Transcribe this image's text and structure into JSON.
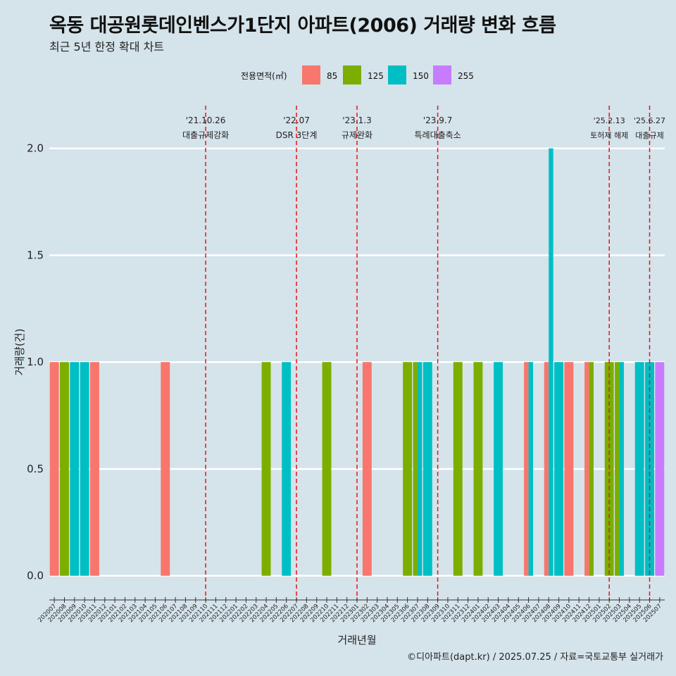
{
  "title": "옥동 대공원롯데인벤스가1단지 아파트(2006) 거래량 변화 흐름",
  "subtitle": "최근 5년 한정 확대 차트",
  "caption": "©디아파트(dapt.kr) / 2025.07.25 / 자료=국토교통부 실거래가",
  "chart_data": {
    "type": "bar",
    "xlabel": "거래년월",
    "ylabel": "거래량(건)",
    "ylim": [
      -0.09,
      2.2
    ],
    "yticks": [
      "0.0",
      "0.5",
      "1.0",
      "1.5",
      "2.0"
    ],
    "grid": true,
    "legend": {
      "title": "전용면적(㎡)",
      "position": "top",
      "items": [
        {
          "label": "85",
          "color": "#F8766D"
        },
        {
          "label": "125",
          "color": "#7CAE00"
        },
        {
          "label": "150",
          "color": "#00BFC4"
        },
        {
          "label": "255",
          "color": "#C77CFF"
        }
      ]
    },
    "categories": [
      "202007",
      "202008",
      "202009",
      "202010",
      "202011",
      "202012",
      "202101",
      "202102",
      "202103",
      "202104",
      "202105",
      "202106",
      "202107",
      "202108",
      "202109",
      "202110",
      "202111",
      "202112",
      "202201",
      "202202",
      "202203",
      "202204",
      "202205",
      "202206",
      "202207",
      "202208",
      "202209",
      "202210",
      "202211",
      "202212",
      "202301",
      "202302",
      "202303",
      "202304",
      "202305",
      "202306",
      "202307",
      "202308",
      "202309",
      "202310",
      "202311",
      "202312",
      "202401",
      "202402",
      "202403",
      "202404",
      "202405",
      "202406",
      "202407",
      "202408",
      "202409",
      "202410",
      "202411",
      "202412",
      "202501",
      "202502",
      "202503",
      "202504",
      "202505",
      "202506",
      "202507"
    ],
    "bars": [
      {
        "month": "202007",
        "area": "85",
        "count": 1
      },
      {
        "month": "202008",
        "area": "125",
        "count": 1
      },
      {
        "month": "202009",
        "area": "150",
        "count": 1
      },
      {
        "month": "202010",
        "area": "150",
        "count": 1
      },
      {
        "month": "202011",
        "area": "85",
        "count": 1
      },
      {
        "month": "202106",
        "area": "85",
        "count": 1
      },
      {
        "month": "202204",
        "area": "125",
        "count": 1
      },
      {
        "month": "202206",
        "area": "150",
        "count": 1
      },
      {
        "month": "202210",
        "area": "125",
        "count": 1
      },
      {
        "month": "202302",
        "area": "85",
        "count": 1
      },
      {
        "month": "202306",
        "area": "125",
        "count": 1
      },
      {
        "month": "202307",
        "area": "125",
        "count": 1
      },
      {
        "month": "202307",
        "area": "150",
        "count": 1
      },
      {
        "month": "202308",
        "area": "150",
        "count": 1
      },
      {
        "month": "202311",
        "area": "125",
        "count": 1
      },
      {
        "month": "202401",
        "area": "125",
        "count": 1
      },
      {
        "month": "202403",
        "area": "150",
        "count": 1
      },
      {
        "month": "202406",
        "area": "85",
        "count": 1
      },
      {
        "month": "202406",
        "area": "150",
        "count": 1
      },
      {
        "month": "202408",
        "area": "85",
        "count": 1
      },
      {
        "month": "202408",
        "area": "150",
        "count": 2
      },
      {
        "month": "202409",
        "area": "150",
        "count": 1
      },
      {
        "month": "202410",
        "area": "85",
        "count": 1
      },
      {
        "month": "202412",
        "area": "85",
        "count": 1
      },
      {
        "month": "202412",
        "area": "125",
        "count": 1
      },
      {
        "month": "202502",
        "area": "125",
        "count": 1
      },
      {
        "month": "202503",
        "area": "125",
        "count": 1
      },
      {
        "month": "202503",
        "area": "150",
        "count": 1
      },
      {
        "month": "202505",
        "area": "150",
        "count": 1
      },
      {
        "month": "202506",
        "area": "150",
        "count": 1
      },
      {
        "month": "202507",
        "area": "255",
        "count": 1
      }
    ],
    "annotations": [
      {
        "month": "202110",
        "line1": "'21.10.26",
        "line2": "대출규제강화"
      },
      {
        "month": "202207",
        "line1": "'22.07",
        "line2": "DSR 3단계"
      },
      {
        "month": "202301",
        "line1": "'23.1.3",
        "line2": "규제완화"
      },
      {
        "month": "202309",
        "line1": "'23.9.7",
        "line2": "특례대출축소"
      },
      {
        "month": "202502",
        "line1": "'25.2.13",
        "line2": "토허제 해제"
      },
      {
        "month": "202506",
        "line1": "'25.6.27",
        "line2": "대출규제"
      }
    ]
  }
}
